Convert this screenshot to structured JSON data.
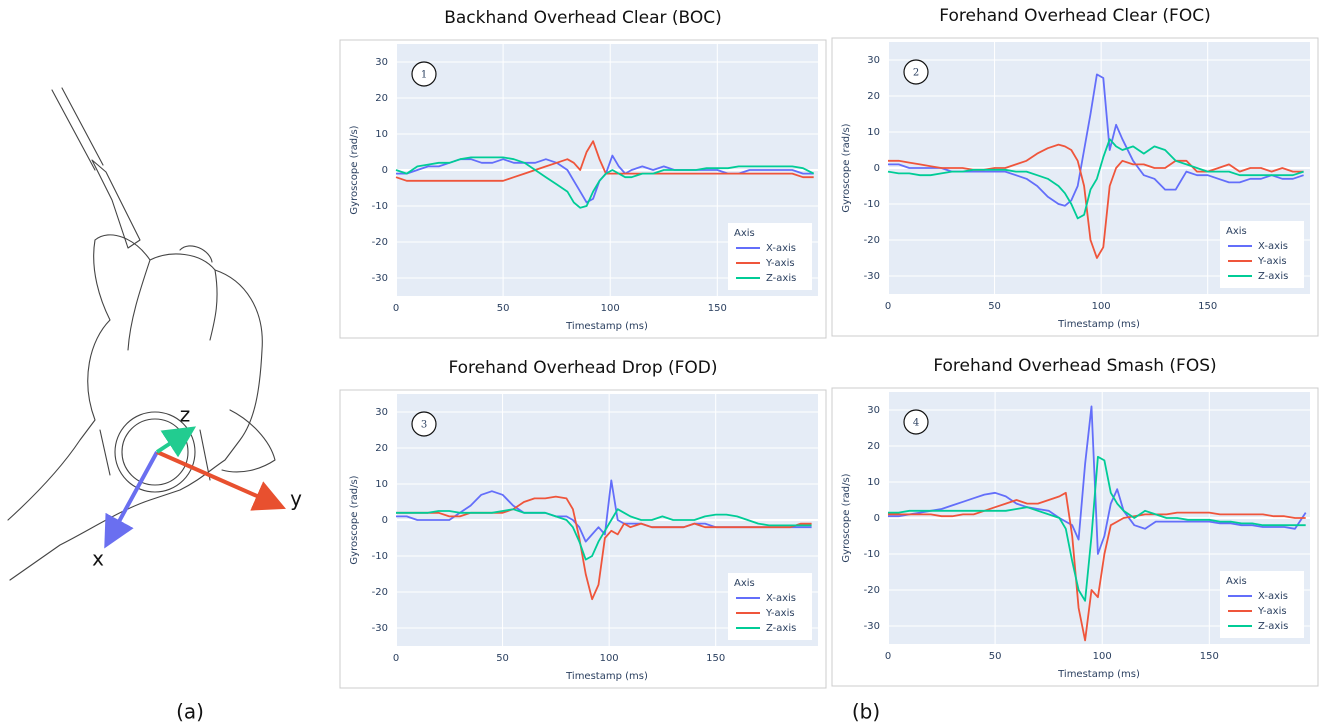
{
  "illustration": {
    "axis_labels": {
      "x": "x",
      "y": "y",
      "z": "z"
    },
    "caption": "(a)"
  },
  "charts_caption": "(b)",
  "chart_data": [
    {
      "type": "line",
      "title": "Backhand Overhead Clear (BOC)",
      "annotation": "1",
      "xlabel": "Timestamp (ms)",
      "ylabel": "Gyroscope (rad/s)",
      "legend_title": "Axis",
      "legend": "bottom-right",
      "grid": true,
      "xlim": [
        0,
        197
      ],
      "ylim": [
        -35,
        35
      ],
      "xticks": [
        0,
        50,
        100,
        150
      ],
      "yticks": [
        -30,
        -20,
        -10,
        0,
        10,
        20,
        30
      ],
      "x": [
        0,
        5,
        10,
        15,
        20,
        25,
        30,
        35,
        40,
        45,
        50,
        55,
        60,
        65,
        70,
        75,
        80,
        83,
        86,
        89,
        92,
        95,
        98,
        101,
        104,
        107,
        110,
        115,
        120,
        125,
        130,
        135,
        140,
        145,
        150,
        155,
        160,
        165,
        170,
        175,
        180,
        185,
        190,
        195
      ],
      "series": [
        {
          "name": "X-axis",
          "color": "#636efa",
          "values": [
            -1,
            -1,
            0,
            1,
            1,
            2,
            3,
            3,
            2,
            2,
            3,
            2,
            2,
            2,
            3,
            2,
            0,
            -3,
            -6,
            -9,
            -8,
            -3,
            -1,
            4,
            1,
            -1,
            0,
            1,
            0,
            1,
            0,
            0,
            0,
            0,
            0,
            -1,
            -1,
            0,
            0,
            0,
            0,
            0,
            -1,
            -1
          ]
        },
        {
          "name": "Y-axis",
          "color": "#ef553b",
          "values": [
            -2,
            -3,
            -3,
            -3,
            -3,
            -3,
            -3,
            -3,
            -3,
            -3,
            -3,
            -2,
            -1,
            0,
            1,
            2,
            3,
            2,
            0,
            5,
            8,
            3,
            -1,
            -1,
            -1,
            -1,
            -1,
            -1,
            -1,
            -1,
            -1,
            -1,
            -1,
            -1,
            -1,
            -1,
            -1,
            -1,
            -1,
            -1,
            -1,
            -1,
            -2,
            -2
          ]
        },
        {
          "name": "Z-axis",
          "color": "#00cc96",
          "values": [
            0,
            -1,
            1,
            1.5,
            2,
            2,
            3,
            3.5,
            3.5,
            3.5,
            3.5,
            3,
            2,
            0,
            -2,
            -4,
            -6,
            -9,
            -10.5,
            -10,
            -6,
            -3,
            -1,
            0,
            -1,
            -2,
            -2,
            -1,
            -1,
            0,
            0,
            0,
            0,
            0.5,
            0.5,
            0.5,
            1,
            1,
            1,
            1,
            1,
            1,
            0.5,
            -1
          ]
        }
      ]
    },
    {
      "type": "line",
      "title": "Forehand Overhead Clear (FOC)",
      "annotation": "2",
      "xlabel": "Timestamp (ms)",
      "ylabel": "Gyroscope (rad/s)",
      "legend_title": "Axis",
      "legend": "bottom-right",
      "grid": true,
      "xlim": [
        0,
        198
      ],
      "ylim": [
        -35,
        35
      ],
      "xticks": [
        0,
        50,
        100,
        150
      ],
      "yticks": [
        -30,
        -20,
        -10,
        0,
        10,
        20,
        30
      ],
      "x": [
        0,
        5,
        10,
        15,
        20,
        25,
        30,
        35,
        40,
        45,
        50,
        55,
        60,
        65,
        70,
        75,
        80,
        83,
        86,
        89,
        92,
        95,
        98,
        101,
        104,
        107,
        110,
        115,
        120,
        125,
        130,
        135,
        140,
        145,
        150,
        155,
        160,
        165,
        170,
        175,
        180,
        185,
        190,
        195
      ],
      "series": [
        {
          "name": "X-axis",
          "color": "#636efa",
          "values": [
            1,
            1,
            0,
            0,
            0,
            0,
            -1,
            -1,
            -1,
            -1,
            -1,
            -1,
            -2,
            -3,
            -5,
            -8,
            -10,
            -10.5,
            -9,
            -5,
            5,
            15,
            26,
            25,
            5,
            12,
            8,
            2,
            -2,
            -3,
            -6,
            -6,
            -1,
            -2,
            -2,
            -3,
            -4,
            -4,
            -3,
            -3,
            -2,
            -3,
            -3,
            -2
          ]
        },
        {
          "name": "Y-axis",
          "color": "#ef553b",
          "values": [
            2,
            2,
            1.5,
            1,
            0.5,
            0,
            0,
            0,
            -0.5,
            -0.5,
            0,
            0,
            1,
            2,
            4,
            5.5,
            6.5,
            6,
            5,
            2,
            -5,
            -20,
            -25,
            -22,
            -5,
            0,
            2,
            1,
            1,
            0,
            0,
            2,
            2,
            -1,
            -1,
            0,
            1,
            -1,
            0,
            0,
            -1,
            0,
            -1,
            -1
          ]
        },
        {
          "name": "Z-axis",
          "color": "#00cc96",
          "values": [
            -1,
            -1.5,
            -1.5,
            -2,
            -2,
            -1.5,
            -1,
            -1,
            -0.5,
            -0.5,
            -0.5,
            -0.5,
            -1,
            -1,
            -2,
            -3,
            -5,
            -7,
            -10,
            -14,
            -13,
            -6,
            -3,
            3,
            8,
            6,
            5,
            6,
            4,
            6,
            5,
            2,
            1,
            0,
            -1,
            -1,
            -1,
            -2,
            -2,
            -2,
            -2,
            -2,
            -2,
            -1
          ]
        }
      ]
    },
    {
      "type": "line",
      "title": "Forehand Overhead Drop (FOD)",
      "annotation": "3",
      "xlabel": "Timestamp (ms)",
      "ylabel": "Gyroscope (rad/s)",
      "legend_title": "Axis",
      "legend": "bottom-right",
      "grid": true,
      "xlim": [
        0,
        198
      ],
      "ylim": [
        -35,
        35
      ],
      "xticks": [
        0,
        50,
        100,
        150
      ],
      "yticks": [
        -30,
        -20,
        -10,
        0,
        10,
        20,
        30
      ],
      "x": [
        0,
        5,
        10,
        15,
        20,
        25,
        30,
        35,
        40,
        45,
        50,
        55,
        60,
        65,
        70,
        75,
        80,
        83,
        86,
        89,
        92,
        95,
        98,
        101,
        104,
        107,
        110,
        115,
        120,
        125,
        130,
        135,
        140,
        145,
        150,
        155,
        160,
        165,
        170,
        175,
        180,
        185,
        190,
        195
      ],
      "series": [
        {
          "name": "X-axis",
          "color": "#636efa",
          "values": [
            1,
            1,
            0,
            0,
            0,
            0,
            2,
            4,
            7,
            8,
            7,
            4,
            2,
            2,
            2,
            1,
            1,
            0,
            -2,
            -6,
            -4,
            -2,
            -4,
            11,
            0,
            -1,
            -1,
            -1,
            -2,
            -2,
            -2,
            -2,
            -1,
            -1,
            -2,
            -2,
            -2,
            -2,
            -2,
            -2,
            -2,
            -2,
            -2,
            -2
          ]
        },
        {
          "name": "Y-axis",
          "color": "#ef553b",
          "values": [
            2,
            2,
            2,
            2,
            2,
            1,
            1,
            2,
            2,
            2,
            2,
            3,
            5,
            6,
            6,
            6.5,
            6,
            3,
            -5,
            -15,
            -22,
            -18,
            -5,
            -3,
            -4,
            -1,
            -2,
            -1,
            -2,
            -2,
            -2,
            -2,
            -1,
            -2,
            -2,
            -2,
            -2,
            -2,
            -2,
            -2,
            -2,
            -2,
            -1,
            -1
          ]
        },
        {
          "name": "Z-axis",
          "color": "#00cc96",
          "values": [
            2,
            2,
            2,
            2,
            2.5,
            2.5,
            2,
            2,
            2,
            2,
            2.5,
            3,
            2,
            2,
            2,
            1,
            0,
            -2,
            -6,
            -11,
            -10,
            -6,
            -3,
            0,
            3,
            2,
            1,
            0,
            0,
            1,
            0,
            0,
            0,
            1,
            1.5,
            1.5,
            1,
            0,
            -1,
            -1.5,
            -1.5,
            -1.5,
            -1.5,
            -1.5
          ]
        }
      ]
    },
    {
      "type": "line",
      "title": "Forehand Overhead Smash (FOS)",
      "annotation": "4",
      "xlabel": "Timestamp (ms)",
      "ylabel": "Gyroscope (rad/s)",
      "legend_title": "Axis",
      "legend": "bottom-right",
      "grid": true,
      "xlim": [
        0,
        197
      ],
      "ylim": [
        -35,
        35
      ],
      "xticks": [
        0,
        50,
        100,
        150
      ],
      "yticks": [
        -30,
        -20,
        -10,
        0,
        10,
        20,
        30
      ],
      "x": [
        0,
        5,
        10,
        15,
        20,
        25,
        30,
        35,
        40,
        45,
        50,
        55,
        60,
        65,
        70,
        75,
        80,
        83,
        86,
        89,
        92,
        95,
        98,
        101,
        104,
        107,
        110,
        115,
        120,
        125,
        130,
        135,
        140,
        145,
        150,
        155,
        160,
        165,
        170,
        175,
        180,
        185,
        190,
        195
      ],
      "series": [
        {
          "name": "X-axis",
          "color": "#636efa",
          "values": [
            0.5,
            0.5,
            1,
            1.5,
            2,
            2.5,
            3.5,
            4.5,
            5.5,
            6.5,
            7,
            6,
            4,
            3,
            2.5,
            2,
            0,
            -1,
            -2,
            -6,
            15,
            31,
            -10,
            -5,
            4,
            8,
            2,
            -2,
            -3,
            -1,
            -1,
            -1,
            -1,
            -1,
            -1,
            -1.5,
            -1.5,
            -2,
            -2,
            -2.5,
            -2.5,
            -2.5,
            -3,
            1.5
          ]
        },
        {
          "name": "Y-axis",
          "color": "#ef553b",
          "values": [
            1,
            1,
            1,
            1,
            1,
            0.5,
            0.5,
            1,
            1,
            2,
            3,
            4,
            5,
            4,
            4,
            5,
            6,
            7,
            -5,
            -25,
            -34,
            -20,
            -22,
            -10,
            -2,
            -1,
            0,
            0.5,
            1,
            1,
            1,
            1.5,
            1.5,
            1.5,
            1.5,
            1,
            1,
            1,
            1,
            1,
            0.5,
            0.5,
            0,
            0
          ]
        },
        {
          "name": "Z-axis",
          "color": "#00cc96",
          "values": [
            1.5,
            1.5,
            2,
            2,
            2,
            2,
            2,
            2,
            2,
            2,
            2,
            2,
            2.5,
            3,
            2,
            1,
            0,
            -3,
            -12,
            -20,
            -23,
            -5,
            17,
            16,
            7,
            4,
            2,
            0,
            2,
            1,
            0,
            0,
            -0.5,
            -0.5,
            -0.5,
            -1,
            -1,
            -1.5,
            -1.5,
            -2,
            -2,
            -2,
            -2,
            -2
          ]
        }
      ]
    }
  ]
}
